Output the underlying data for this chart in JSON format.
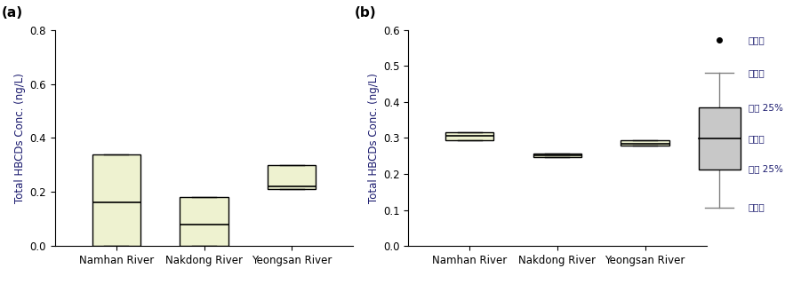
{
  "title_a": "(a)",
  "title_b": "(b)",
  "ylabel": "Total HBCDs Conc. (ng/L)",
  "categories": [
    "Namhan River",
    "Nakdong River",
    "Yeongsan River"
  ],
  "box_color_a": "#eef2d0",
  "box_color_b": "#eef2d0",
  "legend_box_color": "#c8c8c8",
  "panel_a": {
    "ylim": [
      0,
      0.8
    ],
    "yticks": [
      0.0,
      0.2,
      0.4,
      0.6,
      0.8
    ],
    "boxes": [
      {
        "whislo": 0.0,
        "q1": 0.0,
        "med": 0.16,
        "q3": 0.34,
        "whishi": 0.34,
        "fliers": []
      },
      {
        "whislo": 0.0,
        "q1": 0.0,
        "med": 0.08,
        "q3": 0.18,
        "whishi": 0.18,
        "fliers": []
      },
      {
        "whislo": 0.21,
        "q1": 0.21,
        "med": 0.22,
        "q3": 0.3,
        "whishi": 0.3,
        "fliers": []
      }
    ]
  },
  "panel_b": {
    "ylim": [
      0,
      0.6
    ],
    "yticks": [
      0.0,
      0.1,
      0.2,
      0.3,
      0.4,
      0.5,
      0.6
    ],
    "boxes": [
      {
        "whislo": 0.295,
        "q1": 0.295,
        "med": 0.305,
        "q3": 0.315,
        "whishi": 0.315,
        "fliers": []
      },
      {
        "whislo": 0.248,
        "q1": 0.248,
        "med": 0.252,
        "q3": 0.258,
        "whishi": 0.258,
        "fliers": []
      },
      {
        "whislo": 0.278,
        "q1": 0.278,
        "med": 0.284,
        "q3": 0.293,
        "whishi": 0.293,
        "fliers": []
      }
    ]
  },
  "legend_labels": [
    "이상치",
    "최대값",
    "상위 25%",
    "중위값",
    "하위 25%",
    "최소값"
  ],
  "text_color": "#1a1a6e",
  "font_size": 8.5,
  "title_fontsize": 11
}
